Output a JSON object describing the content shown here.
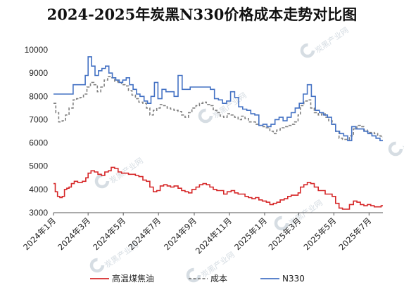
{
  "chart_data": {
    "type": "line",
    "title": "2024-2025年炭黑N330价格成本走势对比图",
    "xlabel": "",
    "ylabel": "",
    "ylim": [
      3000,
      10000
    ],
    "yticks": [
      3000,
      4000,
      5000,
      6000,
      7000,
      8000,
      9000,
      10000
    ],
    "xlim": [
      "2024-01-01",
      "2025-07-25"
    ],
    "xticks": [
      {
        "date": "2024-01-01",
        "label": "2024年1月"
      },
      {
        "date": "2024-03-01",
        "label": "2024年3月"
      },
      {
        "date": "2024-05-01",
        "label": "2024年5月"
      },
      {
        "date": "2024-07-01",
        "label": "2024年7月"
      },
      {
        "date": "2024-09-01",
        "label": "2024年9月"
      },
      {
        "date": "2024-11-01",
        "label": "2024年11月"
      },
      {
        "date": "2025-01-01",
        "label": "2025年1月"
      },
      {
        "date": "2025-03-01",
        "label": "2025年3月"
      },
      {
        "date": "2025-05-01",
        "label": "2025年5月"
      },
      {
        "date": "2025-07-01",
        "label": "2025年7月"
      }
    ],
    "grid": false,
    "legend_position": "bottom",
    "watermark": "炭黑产业网",
    "series": [
      {
        "name": "高温煤焦油",
        "color": "#d62728",
        "dash": "solid",
        "x": [
          "2024-01-01",
          "2024-01-04",
          "2024-01-08",
          "2024-01-12",
          "2024-01-16",
          "2024-01-20",
          "2024-01-24",
          "2024-01-28",
          "2024-02-01",
          "2024-02-06",
          "2024-02-12",
          "2024-02-20",
          "2024-02-26",
          "2024-03-01",
          "2024-03-06",
          "2024-03-12",
          "2024-03-18",
          "2024-03-24",
          "2024-03-30",
          "2024-04-05",
          "2024-04-10",
          "2024-04-16",
          "2024-04-22",
          "2024-04-28",
          "2024-05-04",
          "2024-05-10",
          "2024-05-16",
          "2024-05-22",
          "2024-05-28",
          "2024-06-04",
          "2024-06-10",
          "2024-06-16",
          "2024-06-22",
          "2024-06-28",
          "2024-07-04",
          "2024-07-10",
          "2024-07-16",
          "2024-07-22",
          "2024-07-28",
          "2024-08-04",
          "2024-08-10",
          "2024-08-16",
          "2024-08-22",
          "2024-08-28",
          "2024-09-04",
          "2024-09-10",
          "2024-09-16",
          "2024-09-22",
          "2024-09-28",
          "2024-10-04",
          "2024-10-10",
          "2024-10-16",
          "2024-10-22",
          "2024-10-28",
          "2024-11-04",
          "2024-11-10",
          "2024-11-16",
          "2024-11-22",
          "2024-11-28",
          "2024-12-04",
          "2024-12-10",
          "2024-12-16",
          "2024-12-22",
          "2024-12-28",
          "2025-01-04",
          "2025-01-10",
          "2025-01-16",
          "2025-01-22",
          "2025-01-28",
          "2025-02-04",
          "2025-02-10",
          "2025-02-16",
          "2025-02-22",
          "2025-02-28",
          "2025-03-04",
          "2025-03-10",
          "2025-03-16",
          "2025-03-22",
          "2025-03-28",
          "2025-04-04",
          "2025-04-10",
          "2025-04-16",
          "2025-04-22",
          "2025-04-28",
          "2025-05-04",
          "2025-05-10",
          "2025-05-16",
          "2025-05-22",
          "2025-05-28",
          "2025-06-04",
          "2025-06-10",
          "2025-06-16",
          "2025-06-22",
          "2025-06-28",
          "2025-07-04",
          "2025-07-10",
          "2025-07-16",
          "2025-07-22"
        ],
        "y": [
          4250,
          3900,
          3700,
          3650,
          3700,
          4000,
          4050,
          4100,
          4250,
          4350,
          4300,
          4350,
          4500,
          4700,
          4800,
          4750,
          4650,
          4600,
          4750,
          4800,
          4950,
          4900,
          4750,
          4700,
          4700,
          4650,
          4650,
          4600,
          4550,
          4400,
          4350,
          4100,
          3900,
          3950,
          4150,
          4200,
          4150,
          4100,
          4150,
          4050,
          3950,
          3900,
          3850,
          4000,
          4100,
          4200,
          4250,
          4200,
          4100,
          4000,
          3950,
          3950,
          3800,
          3900,
          3950,
          3850,
          3800,
          3800,
          3700,
          3650,
          3600,
          3650,
          3550,
          3500,
          3450,
          3350,
          3400,
          3450,
          3550,
          3600,
          3700,
          3750,
          3750,
          3850,
          4100,
          4200,
          4300,
          4250,
          4100,
          3950,
          3950,
          3800,
          3800,
          3700,
          3400,
          3200,
          3150,
          3150,
          3350,
          3500,
          3450,
          3350,
          3300,
          3350,
          3300,
          3250,
          3250,
          3300
        ]
      },
      {
        "name": "成本",
        "color": "#808080",
        "dash": "dashed",
        "x": [
          "2024-01-01",
          "2024-01-05",
          "2024-01-10",
          "2024-01-16",
          "2024-01-22",
          "2024-01-28",
          "2024-02-04",
          "2024-02-10",
          "2024-02-16",
          "2024-02-22",
          "2024-02-28",
          "2024-03-05",
          "2024-03-11",
          "2024-03-17",
          "2024-03-23",
          "2024-03-29",
          "2024-04-04",
          "2024-04-10",
          "2024-04-16",
          "2024-04-22",
          "2024-04-28",
          "2024-05-04",
          "2024-05-10",
          "2024-05-16",
          "2024-05-22",
          "2024-05-28",
          "2024-06-04",
          "2024-06-10",
          "2024-06-16",
          "2024-06-22",
          "2024-06-28",
          "2024-07-04",
          "2024-07-10",
          "2024-07-16",
          "2024-07-22",
          "2024-07-28",
          "2024-08-04",
          "2024-08-10",
          "2024-08-16",
          "2024-08-22",
          "2024-08-28",
          "2024-09-04",
          "2024-09-10",
          "2024-09-16",
          "2024-09-22",
          "2024-09-28",
          "2024-10-04",
          "2024-10-10",
          "2024-10-16",
          "2024-10-22",
          "2024-10-28",
          "2024-11-04",
          "2024-11-10",
          "2024-11-16",
          "2024-11-22",
          "2024-11-28",
          "2024-12-04",
          "2024-12-10",
          "2024-12-16",
          "2024-12-22",
          "2024-12-28",
          "2025-01-04",
          "2025-01-10",
          "2025-01-16",
          "2025-01-22",
          "2025-01-28",
          "2025-02-04",
          "2025-02-10",
          "2025-02-16",
          "2025-02-22",
          "2025-02-28",
          "2025-03-04",
          "2025-03-10",
          "2025-03-16",
          "2025-03-22",
          "2025-03-28",
          "2025-04-04",
          "2025-04-10",
          "2025-04-16",
          "2025-04-22",
          "2025-04-28",
          "2025-05-04",
          "2025-05-10",
          "2025-05-16",
          "2025-05-22",
          "2025-05-28",
          "2025-06-04",
          "2025-06-10",
          "2025-06-16",
          "2025-06-22",
          "2025-06-28",
          "2025-07-04",
          "2025-07-10",
          "2025-07-16",
          "2025-07-22"
        ],
        "y": [
          7700,
          7300,
          6900,
          6950,
          7200,
          7500,
          7850,
          7900,
          7950,
          8100,
          8400,
          8600,
          8500,
          8200,
          8400,
          8700,
          8850,
          8800,
          8650,
          8600,
          8500,
          8450,
          8250,
          8050,
          7900,
          7750,
          7700,
          7500,
          7200,
          7400,
          7500,
          7650,
          7600,
          7500,
          7450,
          7400,
          7350,
          7200,
          7100,
          7300,
          7500,
          7600,
          7700,
          7750,
          7650,
          7600,
          7400,
          7300,
          7150,
          7100,
          7250,
          7200,
          7100,
          7000,
          7150,
          7050,
          6900,
          6900,
          6800,
          6750,
          6700,
          6650,
          6500,
          6400,
          6550,
          6650,
          6700,
          6750,
          6800,
          6900,
          7200,
          7600,
          7800,
          7850,
          7500,
          7300,
          7200,
          7250,
          7100,
          6950,
          6800,
          6500,
          6200,
          6150,
          6150,
          6300,
          6600,
          6750,
          6700,
          6550,
          6450,
          6450,
          6400,
          6300,
          6250
        ]
      },
      {
        "name": "N330",
        "color": "#4472c4",
        "dash": "solid",
        "x": [
          "2024-01-01",
          "2024-01-07",
          "2024-01-14",
          "2024-01-21",
          "2024-01-28",
          "2024-02-04",
          "2024-02-11",
          "2024-02-18",
          "2024-02-25",
          "2024-03-01",
          "2024-03-07",
          "2024-03-13",
          "2024-03-19",
          "2024-03-25",
          "2024-03-31",
          "2024-04-06",
          "2024-04-12",
          "2024-04-18",
          "2024-04-24",
          "2024-04-30",
          "2024-05-06",
          "2024-05-12",
          "2024-05-18",
          "2024-05-24",
          "2024-05-30",
          "2024-06-06",
          "2024-06-12",
          "2024-06-18",
          "2024-06-24",
          "2024-06-30",
          "2024-07-07",
          "2024-07-14",
          "2024-07-21",
          "2024-07-28",
          "2024-08-04",
          "2024-08-11",
          "2024-08-18",
          "2024-08-25",
          "2024-09-01",
          "2024-09-08",
          "2024-09-15",
          "2024-09-22",
          "2024-09-29",
          "2024-10-06",
          "2024-10-13",
          "2024-10-20",
          "2024-10-27",
          "2024-11-03",
          "2024-11-10",
          "2024-11-17",
          "2024-11-24",
          "2024-12-01",
          "2024-12-08",
          "2024-12-15",
          "2024-12-22",
          "2024-12-29",
          "2025-01-05",
          "2025-01-12",
          "2025-01-19",
          "2025-01-26",
          "2025-02-02",
          "2025-02-09",
          "2025-02-16",
          "2025-02-23",
          "2025-03-02",
          "2025-03-09",
          "2025-03-16",
          "2025-03-23",
          "2025-03-30",
          "2025-04-06",
          "2025-04-13",
          "2025-04-20",
          "2025-04-27",
          "2025-05-04",
          "2025-05-11",
          "2025-05-18",
          "2025-05-25",
          "2025-06-01",
          "2025-06-08",
          "2025-06-15",
          "2025-06-22",
          "2025-06-29",
          "2025-07-06",
          "2025-07-13",
          "2025-07-20"
        ],
        "y": [
          8100,
          8100,
          8100,
          8100,
          8100,
          8500,
          8500,
          8500,
          8900,
          9700,
          9300,
          8900,
          9100,
          9200,
          9300,
          9000,
          8800,
          8700,
          8600,
          8700,
          8800,
          8500,
          8300,
          8100,
          8000,
          7800,
          7700,
          8000,
          8600,
          7900,
          8300,
          8200,
          8200,
          8000,
          8900,
          8300,
          8300,
          8400,
          8400,
          8400,
          8400,
          8400,
          8300,
          7900,
          7850,
          7700,
          7800,
          8200,
          7950,
          7550,
          7450,
          7400,
          7250,
          7200,
          6750,
          6800,
          6700,
          6800,
          7000,
          7100,
          6950,
          7100,
          7300,
          7500,
          7700,
          8100,
          8500,
          8000,
          7400,
          7300,
          7200,
          7100,
          6800,
          6500,
          6400,
          6300,
          6100,
          6700,
          6600,
          6600,
          6500,
          6400,
          6300,
          6200,
          6100
        ]
      }
    ]
  }
}
